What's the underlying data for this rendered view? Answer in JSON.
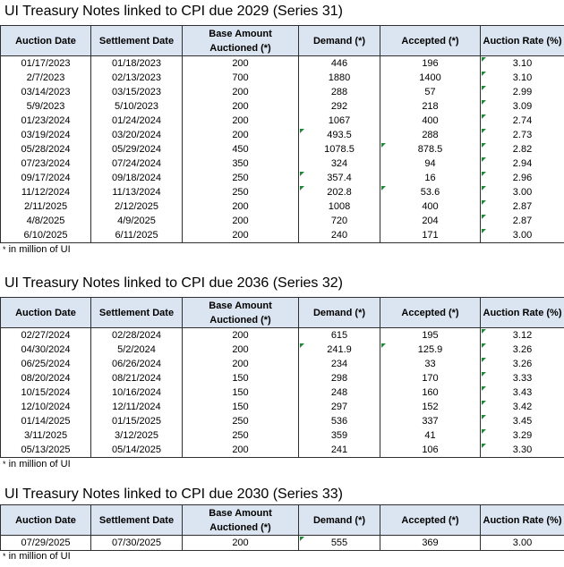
{
  "headers": [
    "Auction Date",
    "Settlement Date",
    "Base Amount Auctioned (*)",
    "Demand (*)",
    "Accepted (*)",
    "Auction Rate (%)"
  ],
  "footnote": "in million of UI",
  "footnote_marker": "*",
  "sections": [
    {
      "title": "UI Treasury Notes linked to CPI due 2029 (Series 31)",
      "rows": [
        [
          "01/17/2023",
          "01/18/2023",
          "200",
          "446",
          "196",
          "3.10"
        ],
        [
          "2/7/2023",
          "02/13/2023",
          "700",
          "1880",
          "1400",
          "3.10"
        ],
        [
          "03/14/2023",
          "03/15/2023",
          "200",
          "288",
          "57",
          "2.99"
        ],
        [
          "5/9/2023",
          "5/10/2023",
          "200",
          "292",
          "218",
          "3.09"
        ],
        [
          "01/23/2024",
          "01/24/2024",
          "200",
          "1067",
          "400",
          "2.74"
        ],
        [
          "03/19/2024",
          "03/20/2024",
          "200",
          "493.5",
          "288",
          "2.73"
        ],
        [
          "05/28/2024",
          "05/29/2024",
          "450",
          "1078.5",
          "878.5",
          "2.82"
        ],
        [
          "07/23/2024",
          "07/24/2024",
          "350",
          "324",
          "94",
          "2.94"
        ],
        [
          "09/17/2024",
          "09/18/2024",
          "250",
          "357.4",
          "16",
          "2.96"
        ],
        [
          "11/12/2024",
          "11/13/2024",
          "250",
          "202.8",
          "53.6",
          "3.00"
        ],
        [
          "2/11/2025",
          "2/12/2025",
          "200",
          "1008",
          "400",
          "2.87"
        ],
        [
          "4/8/2025",
          "4/9/2025",
          "200",
          "720",
          "204",
          "2.87"
        ],
        [
          "6/10/2025",
          "6/11/2025",
          "200",
          "240",
          "171",
          "3.00"
        ]
      ]
    },
    {
      "title": "UI Treasury Notes linked to CPI due 2036 (Series 32)",
      "rows": [
        [
          "02/27/2024",
          "02/28/2024",
          "200",
          "615",
          "195",
          "3.12"
        ],
        [
          "04/30/2024",
          "5/2/2024",
          "200",
          "241.9",
          "125.9",
          "3.26"
        ],
        [
          "06/25/2024",
          "06/26/2024",
          "200",
          "234",
          "33",
          "3.26"
        ],
        [
          "08/20/2024",
          "08/21/2024",
          "150",
          "298",
          "170",
          "3.33"
        ],
        [
          "10/15/2024",
          "10/16/2024",
          "150",
          "248",
          "160",
          "3.43"
        ],
        [
          "12/10/2024",
          "12/11/2024",
          "150",
          "297",
          "152",
          "3.42"
        ],
        [
          "01/14/2025",
          "01/15/2025",
          "250",
          "536",
          "337",
          "3.45"
        ],
        [
          "3/11/2025",
          "3/12/2025",
          "250",
          "359",
          "41",
          "3.29"
        ],
        [
          "05/13/2025",
          "05/14/2025",
          "200",
          "241",
          "106",
          "3.30"
        ]
      ]
    },
    {
      "title": "UI Treasury Notes linked to CPI due 2030 (Series 33)",
      "rows": [
        [
          "07/29/2025",
          "07/30/2025",
          "200",
          "555",
          "369",
          "3.00"
        ]
      ]
    }
  ],
  "cell_marker_color": "#1d8a3a",
  "header_fill": "#dbe5f1"
}
